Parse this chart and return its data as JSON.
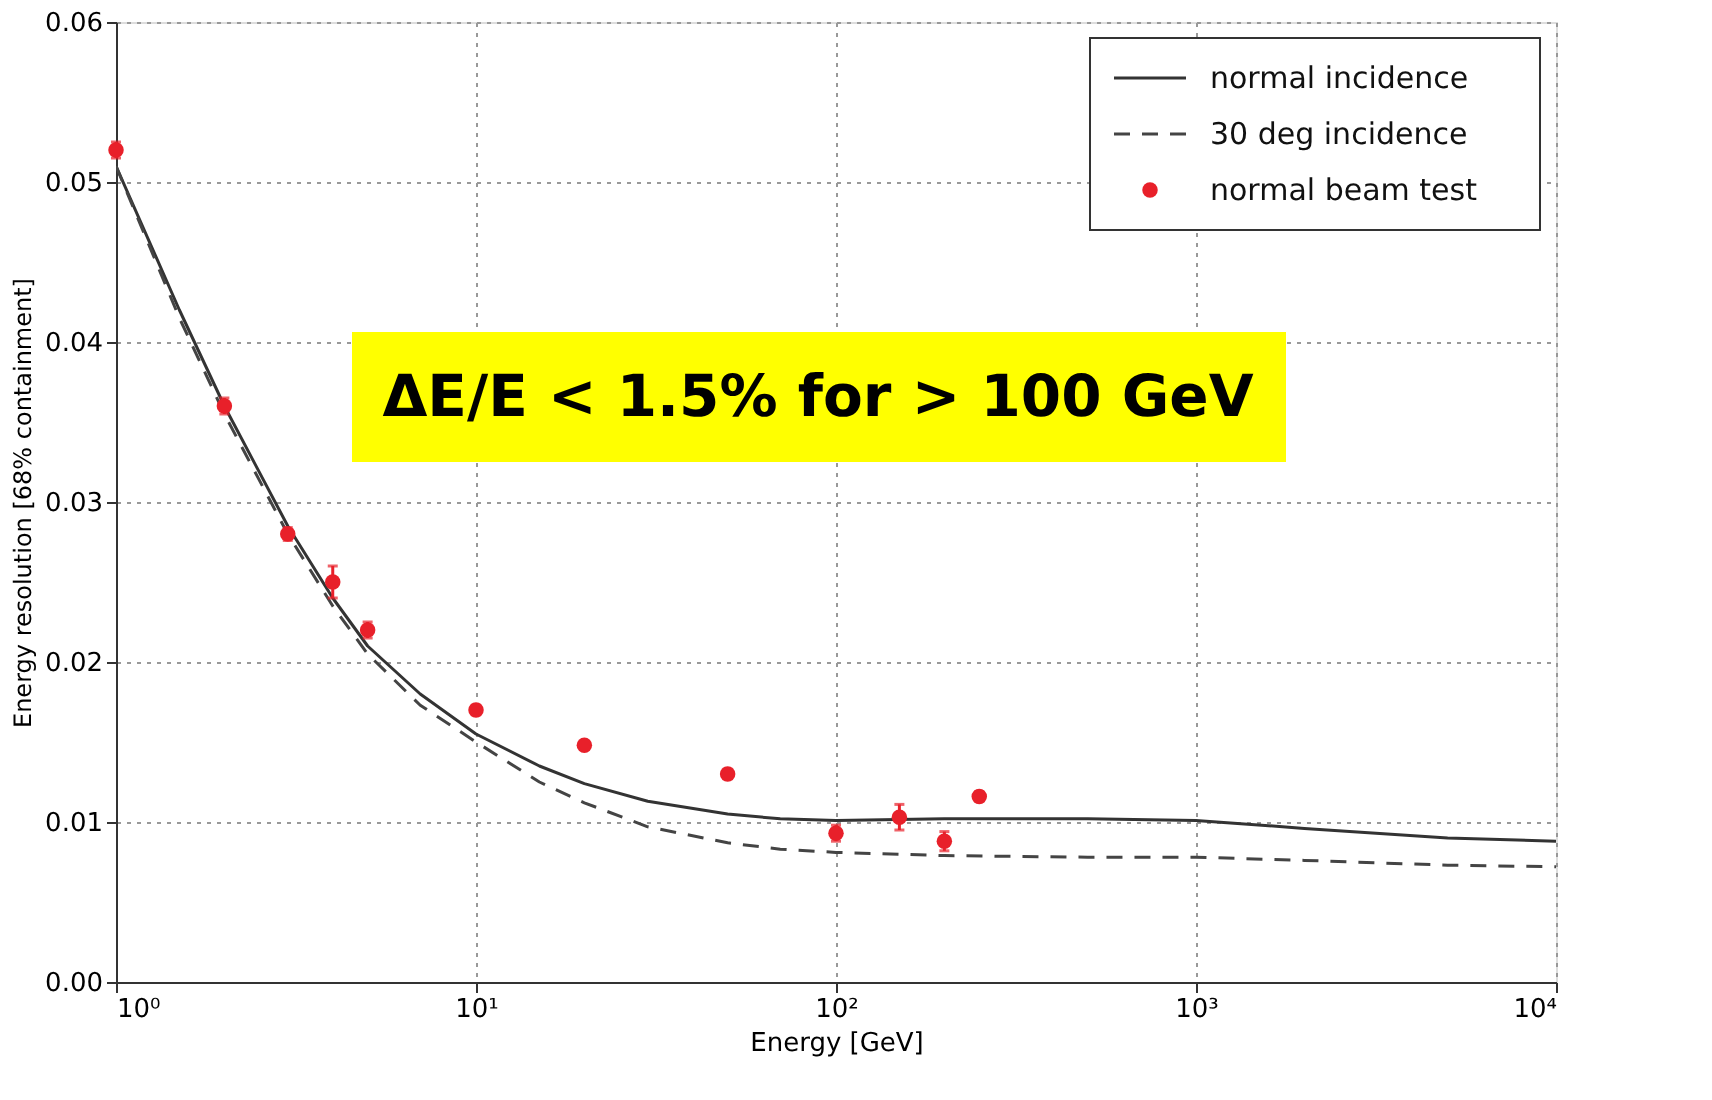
{
  "chart_data": {
    "type": "line",
    "xlabel": "Energy [GeV]",
    "ylabel": "Energy resolution [68% containment]",
    "log": "x",
    "xlim": [
      1,
      10000
    ],
    "xticks": [
      {
        "value": 1,
        "label": "10⁰"
      },
      {
        "value": 10,
        "label": "10¹"
      },
      {
        "value": 100,
        "label": "10²"
      },
      {
        "value": 1000,
        "label": "10³"
      },
      {
        "value": 10000,
        "label": "10⁴"
      }
    ],
    "ylim": [
      0,
      0.06
    ],
    "yticks": [
      {
        "value": 0,
        "label": "0.00"
      },
      {
        "value": 0.01,
        "label": "0.01"
      },
      {
        "value": 0.02,
        "label": "0.02"
      },
      {
        "value": 0.03,
        "label": "0.03"
      },
      {
        "value": 0.04,
        "label": "0.04"
      },
      {
        "value": 0.05,
        "label": "0.05"
      },
      {
        "value": 0.06,
        "label": "0.06"
      }
    ],
    "grid": true,
    "legend": "top right",
    "annotations": [
      "ΔE/E < 1.5% for > 100 GeV"
    ],
    "series": [
      {
        "name": "normal incidence",
        "line_style": "solid",
        "marker": "none",
        "color": "#333333",
        "x": [
          1,
          1.5,
          2,
          3,
          4,
          5,
          7,
          10,
          15,
          20,
          30,
          50,
          70,
          100,
          200,
          500,
          1000,
          2000,
          5000,
          10000
        ],
        "values": [
          0.051,
          0.042,
          0.036,
          0.0285,
          0.024,
          0.021,
          0.018,
          0.0155,
          0.0135,
          0.0124,
          0.0113,
          0.0105,
          0.0102,
          0.0101,
          0.0102,
          0.0102,
          0.0101,
          0.0096,
          0.009,
          0.0088
        ]
      },
      {
        "name": "30 deg incidence",
        "line_style": "dashed",
        "marker": "none",
        "color": "#444444",
        "x": [
          1,
          1.5,
          2,
          3,
          4,
          5,
          7,
          10,
          15,
          20,
          30,
          50,
          70,
          100,
          200,
          500,
          1000,
          2000,
          5000,
          10000
        ],
        "values": [
          0.051,
          0.0415,
          0.0355,
          0.028,
          0.0235,
          0.0205,
          0.0173,
          0.015,
          0.0125,
          0.0112,
          0.0097,
          0.0087,
          0.0083,
          0.0081,
          0.0079,
          0.0078,
          0.0078,
          0.0076,
          0.0073,
          0.0072
        ]
      },
      {
        "name": "normal beam test",
        "type": "scatter",
        "marker": "circle",
        "color": "#e8202a",
        "x": [
          1,
          2,
          3,
          4,
          5,
          10,
          20,
          50,
          100,
          150,
          200,
          250
        ],
        "values": [
          0.052,
          0.036,
          0.028,
          0.025,
          0.022,
          0.017,
          0.0148,
          0.013,
          0.0093,
          0.0103,
          0.0088,
          0.0116
        ],
        "errors": [
          0.0005,
          0.0005,
          0.0004,
          0.001,
          0.0005,
          0.0003,
          0.0002,
          0.0003,
          0.0005,
          0.0008,
          0.0006,
          0.0003
        ]
      }
    ]
  }
}
